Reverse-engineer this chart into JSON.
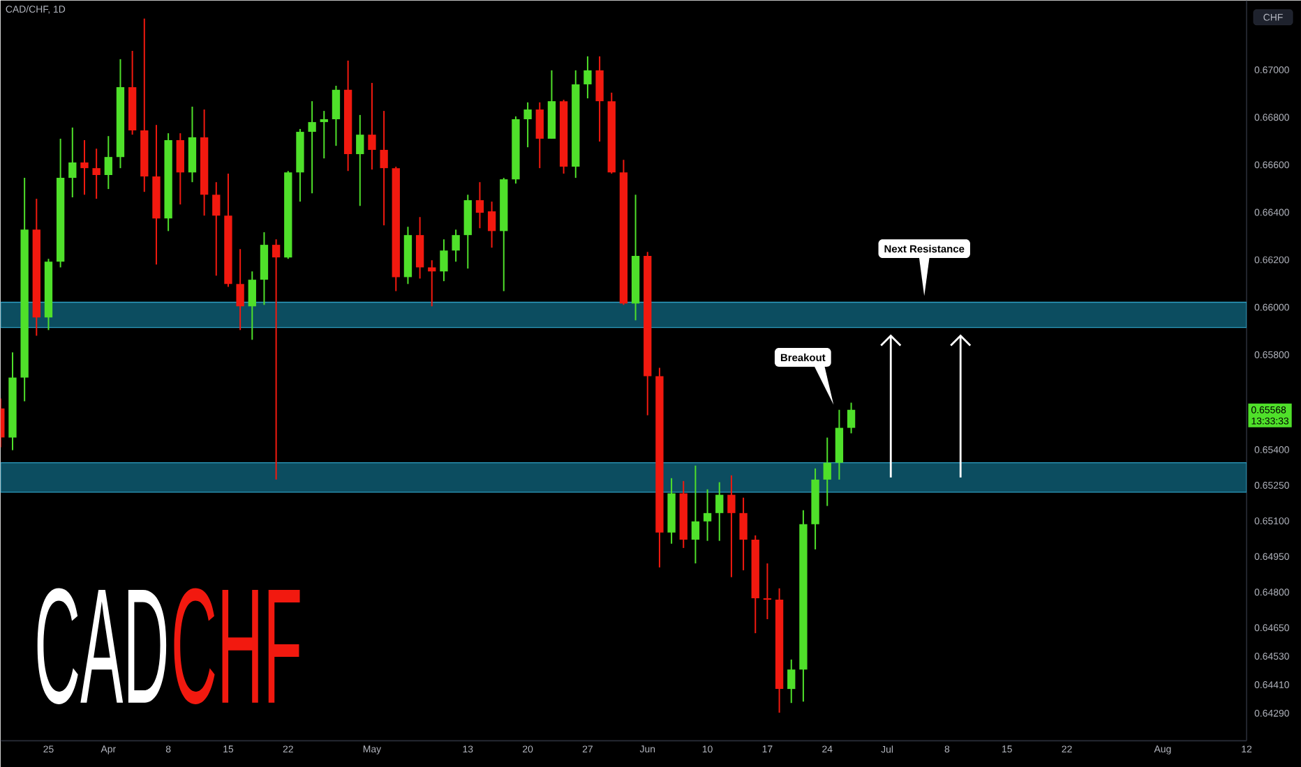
{
  "chart_data": {
    "type": "candlestick",
    "title": "CAD/CHF, 1D",
    "annotations": [
      "CAD",
      "CHF",
      "Breakout",
      "Next Resistance",
      "0.65568",
      "13:33:33",
      "CHF"
    ],
    "categories": [
      null,
      null,
      null,
      null,
      "25",
      null,
      null,
      null,
      null,
      "Apr",
      null,
      null,
      null,
      null,
      "8",
      null,
      null,
      null,
      null,
      "15",
      null,
      null,
      null,
      null,
      "22",
      null,
      null,
      null,
      null,
      null,
      null,
      "May",
      null,
      null,
      null,
      null,
      null,
      null,
      null,
      "13",
      null,
      null,
      null,
      null,
      "20",
      null,
      null,
      null,
      null,
      "27",
      null,
      null,
      null,
      null,
      "Jun",
      null,
      null,
      null,
      null,
      "10",
      null,
      null,
      null,
      null,
      "17",
      null,
      null,
      null,
      null,
      "24",
      null,
      null,
      null,
      null,
      "Jul",
      null,
      null,
      null,
      null,
      "8",
      null,
      null,
      null,
      null,
      "15",
      null,
      null,
      null,
      null,
      "22",
      null,
      null,
      null,
      null,
      null,
      null,
      null,
      "Aug",
      null,
      null,
      null,
      null,
      null,
      null,
      "12"
    ],
    "ohlc": [
      [
        0.65574,
        0.65616,
        0.6541,
        0.65451
      ],
      [
        0.65451,
        0.6581,
        0.65398,
        0.65704
      ],
      [
        0.65704,
        0.66545,
        0.65604,
        0.66327
      ],
      [
        0.66327,
        0.66457,
        0.6588,
        0.65957
      ],
      [
        0.65957,
        0.66204,
        0.65904,
        0.66192
      ],
      [
        0.66192,
        0.6671,
        0.66168,
        0.66545
      ],
      [
        0.66545,
        0.66757,
        0.66463,
        0.6661
      ],
      [
        0.6661,
        0.66704,
        0.66474,
        0.66586
      ],
      [
        0.66586,
        0.66668,
        0.66457,
        0.66557
      ],
      [
        0.66557,
        0.66721,
        0.66498,
        0.66633
      ],
      [
        0.66633,
        0.67045,
        0.66586,
        0.66927
      ],
      [
        0.66927,
        0.6708,
        0.66727,
        0.66745
      ],
      [
        0.66745,
        0.67216,
        0.66486,
        0.66551
      ],
      [
        0.66551,
        0.66768,
        0.6618,
        0.66374
      ],
      [
        0.66374,
        0.66733,
        0.66321,
        0.66704
      ],
      [
        0.66704,
        0.66733,
        0.66433,
        0.66568
      ],
      [
        0.66568,
        0.66845,
        0.66527,
        0.66716
      ],
      [
        0.66716,
        0.66833,
        0.66386,
        0.66474
      ],
      [
        0.66474,
        0.66527,
        0.66133,
        0.66386
      ],
      [
        0.66386,
        0.66563,
        0.66086,
        0.66098
      ],
      [
        0.66098,
        0.66245,
        0.65904,
        0.66004
      ],
      [
        0.66004,
        0.66151,
        0.65863,
        0.66116
      ],
      [
        0.66116,
        0.66316,
        0.6601,
        0.66263
      ],
      [
        0.66263,
        0.66286,
        0.65274,
        0.6621
      ],
      [
        0.6621,
        0.66574,
        0.66204,
        0.66568
      ],
      [
        0.66568,
        0.66751,
        0.66445,
        0.66739
      ],
      [
        0.66739,
        0.66868,
        0.6648,
        0.6678
      ],
      [
        0.6678,
        0.66827,
        0.66627,
        0.66792
      ],
      [
        0.66792,
        0.66933,
        0.6668,
        0.66916
      ],
      [
        0.66916,
        0.67039,
        0.66574,
        0.66645
      ],
      [
        0.66645,
        0.6681,
        0.66427,
        0.66727
      ],
      [
        0.66727,
        0.66945,
        0.6658,
        0.66663
      ],
      [
        0.66663,
        0.66827,
        0.66345,
        0.66586
      ],
      [
        0.66586,
        0.66592,
        0.66068,
        0.66127
      ],
      [
        0.66127,
        0.66339,
        0.66098,
        0.66304
      ],
      [
        0.66304,
        0.6638,
        0.66121,
        0.66168
      ],
      [
        0.66168,
        0.66198,
        0.66004,
        0.66151
      ],
      [
        0.66151,
        0.66286,
        0.6611,
        0.66239
      ],
      [
        0.66239,
        0.66327,
        0.66192,
        0.66304
      ],
      [
        0.66304,
        0.66474,
        0.66163,
        0.66451
      ],
      [
        0.66451,
        0.66527,
        0.66333,
        0.66398
      ],
      [
        0.66404,
        0.66445,
        0.66251,
        0.66321
      ],
      [
        0.66321,
        0.66545,
        0.66068,
        0.66539
      ],
      [
        0.66539,
        0.66804,
        0.66521,
        0.66792
      ],
      [
        0.66792,
        0.66863,
        0.66674,
        0.66833
      ],
      [
        0.66833,
        0.66863,
        0.66586,
        0.6671
      ],
      [
        0.6671,
        0.66998,
        0.6671,
        0.66868
      ],
      [
        0.66868,
        0.66874,
        0.66563,
        0.66592
      ],
      [
        0.66592,
        0.66998,
        0.66545,
        0.66939
      ],
      [
        0.66939,
        0.67057,
        0.6688,
        0.66998
      ],
      [
        0.66998,
        0.67057,
        0.66698,
        0.66868
      ],
      [
        0.66868,
        0.66904,
        0.66563,
        0.66568
      ],
      [
        0.66568,
        0.66621,
        0.6601,
        0.66016
      ],
      [
        0.66016,
        0.66474,
        0.65945,
        0.66216
      ],
      [
        0.66216,
        0.66233,
        0.65545,
        0.6571
      ],
      [
        0.6571,
        0.65745,
        0.64904,
        0.65051
      ],
      [
        0.65051,
        0.6528,
        0.65004,
        0.65216
      ],
      [
        0.65216,
        0.65268,
        0.64986,
        0.65021
      ],
      [
        0.65021,
        0.65333,
        0.64921,
        0.65098
      ],
      [
        0.65098,
        0.65233,
        0.65016,
        0.65133
      ],
      [
        0.65133,
        0.65263,
        0.65016,
        0.6521
      ],
      [
        0.6521,
        0.65292,
        0.64863,
        0.65133
      ],
      [
        0.65133,
        0.65198,
        0.64892,
        0.65021
      ],
      [
        0.65021,
        0.65039,
        0.64627,
        0.64774
      ],
      [
        0.64774,
        0.64921,
        0.64686,
        0.64768
      ],
      [
        0.64768,
        0.64816,
        0.64292,
        0.64392
      ],
      [
        0.64392,
        0.64516,
        0.64333,
        0.64474
      ],
      [
        0.64474,
        0.65145,
        0.64339,
        0.65086
      ],
      [
        0.65086,
        0.65321,
        0.6498,
        0.65274
      ],
      [
        0.65274,
        0.65451,
        0.65163,
        0.65345
      ],
      [
        0.65345,
        0.65568,
        0.65274,
        0.65492
      ],
      [
        0.65492,
        0.65598,
        0.65469,
        0.65568
      ],
      null,
      null,
      null,
      null,
      null,
      null,
      null,
      null,
      null,
      null,
      null,
      null,
      null,
      null,
      null,
      null,
      null,
      null,
      null,
      null,
      null,
      null,
      null,
      null,
      null,
      null,
      null,
      null,
      null,
      null,
      null,
      null,
      null
    ],
    "colors": [
      "#f2190f",
      "#4fe02a",
      "#4fe02a",
      "#f2190f",
      "#4fe02a",
      "#4fe02a",
      "#4fe02a",
      "#f2190f",
      "#f2190f",
      "#4fe02a",
      "#4fe02a",
      "#f2190f",
      "#f2190f",
      "#f2190f",
      "#4fe02a",
      "#f2190f",
      "#4fe02a",
      "#f2190f",
      "#f2190f",
      "#f2190f",
      "#f2190f",
      "#4fe02a",
      "#4fe02a",
      "#f2190f",
      "#4fe02a",
      "#4fe02a",
      "#4fe02a",
      "#4fe02a",
      "#4fe02a",
      "#f2190f",
      "#4fe02a",
      "#f2190f",
      "#f2190f",
      "#f2190f",
      "#4fe02a",
      "#f2190f",
      "#f2190f",
      "#4fe02a",
      "#4fe02a",
      "#4fe02a",
      "#f2190f",
      "#f2190f",
      "#4fe02a",
      "#4fe02a",
      "#4fe02a",
      "#f2190f",
      "#4fe02a",
      "#f2190f",
      "#4fe02a",
      "#4fe02a",
      "#f2190f",
      "#f2190f",
      "#f2190f",
      "#4fe02a",
      "#f2190f",
      "#f2190f",
      "#4fe02a",
      "#f2190f",
      "#4fe02a",
      "#4fe02a",
      "#4fe02a",
      "#f2190f",
      "#f2190f",
      "#f2190f",
      "#f2190f",
      "#f2190f",
      "#4fe02a",
      "#4fe02a",
      "#4fe02a",
      "#4fe02a",
      "#4fe02a",
      "#4fe02a",
      null,
      null,
      null,
      null,
      null,
      null,
      null,
      null,
      null,
      null,
      null,
      null,
      null,
      null,
      null,
      null,
      null,
      null,
      null,
      null,
      null,
      null,
      null,
      null,
      null,
      null,
      null,
      null,
      null,
      null,
      null,
      null,
      null
    ],
    "ylim": [
      0.64174,
      0.67292
    ],
    "yticks": [
      {
        "value": 0.67,
        "label": "0.67000"
      },
      {
        "value": 0.668,
        "label": "0.66800"
      },
      {
        "value": 0.666,
        "label": "0.66600"
      },
      {
        "value": 0.664,
        "label": "0.66400"
      },
      {
        "value": 0.662,
        "label": "0.66200"
      },
      {
        "value": 0.66,
        "label": "0.66000"
      },
      {
        "value": 0.658,
        "label": "0.65800"
      },
      {
        "value": 0.654,
        "label": "0.65400"
      },
      {
        "value": 0.6525,
        "label": "0.65250"
      },
      {
        "value": 0.651,
        "label": "0.65100"
      },
      {
        "value": 0.6495,
        "label": "0.64950"
      },
      {
        "value": 0.648,
        "label": "0.64800"
      },
      {
        "value": 0.6465,
        "label": "0.64650"
      },
      {
        "value": 0.6453,
        "label": "0.64530"
      },
      {
        "value": 0.6441,
        "label": "0.64410"
      },
      {
        "value": 0.6429,
        "label": "0.64290"
      }
    ],
    "bands": [
      {
        "axis": "y",
        "from": 0.65915,
        "to": 0.66021,
        "color": "#0c4d60"
      },
      {
        "axis": "y",
        "from": 0.65221,
        "to": 0.65345,
        "color": "#0c4d60"
      }
    ]
  }
}
